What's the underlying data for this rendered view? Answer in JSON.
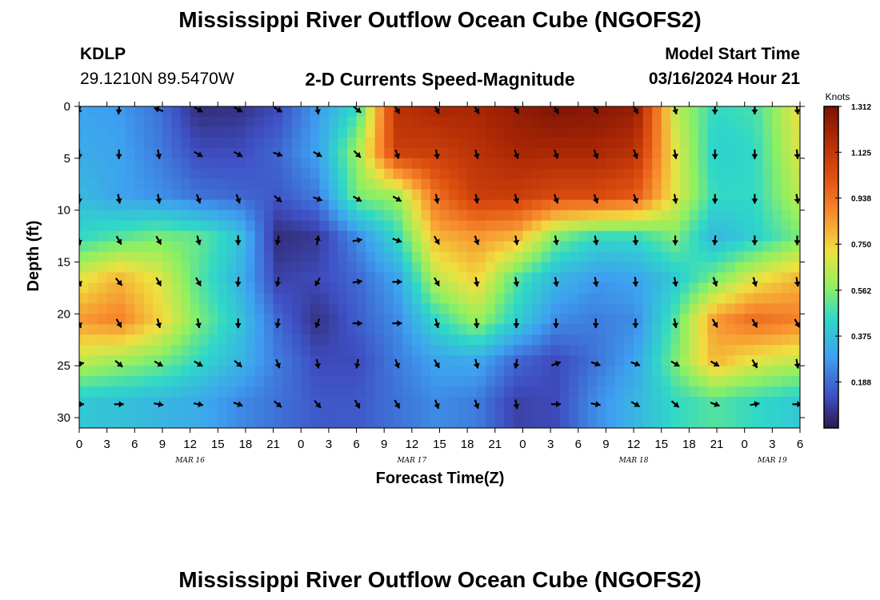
{
  "header": {
    "title": "Mississippi River Outflow Ocean Cube (NGOFS2)",
    "station_id": "KDLP",
    "station_coords": "29.1210N  89.5470W",
    "subtitle": "2-D Currents Speed-Magnitude",
    "model_start_label": "Model Start Time",
    "model_start_value": "03/16/2024 Hour 21"
  },
  "footer": {
    "title": "Mississippi River Outflow Ocean Cube (NGOFS2)"
  },
  "chart_data": {
    "type": "heatmap",
    "title": "2-D Currents Speed-Magnitude",
    "xlabel": "Forecast Time(Z)",
    "ylabel": "Depth (ft)",
    "x_range_hours": [
      0,
      78
    ],
    "ylim": [
      0,
      31
    ],
    "y_ticks": [
      0,
      5,
      10,
      15,
      20,
      25,
      30
    ],
    "x_ticks": [
      {
        "h": 0,
        "label": "0"
      },
      {
        "h": 3,
        "label": "3"
      },
      {
        "h": 6,
        "label": "6"
      },
      {
        "h": 9,
        "label": "9"
      },
      {
        "h": 12,
        "label": "12"
      },
      {
        "h": 15,
        "label": "15"
      },
      {
        "h": 18,
        "label": "18"
      },
      {
        "h": 21,
        "label": "21"
      },
      {
        "h": 24,
        "label": "0"
      },
      {
        "h": 27,
        "label": "3"
      },
      {
        "h": 30,
        "label": "6"
      },
      {
        "h": 33,
        "label": "9"
      },
      {
        "h": 36,
        "label": "12"
      },
      {
        "h": 39,
        "label": "15"
      },
      {
        "h": 42,
        "label": "18"
      },
      {
        "h": 45,
        "label": "21"
      },
      {
        "h": 48,
        "label": "0"
      },
      {
        "h": 51,
        "label": "3"
      },
      {
        "h": 54,
        "label": "6"
      },
      {
        "h": 57,
        "label": "9"
      },
      {
        "h": 60,
        "label": "12"
      },
      {
        "h": 63,
        "label": "15"
      },
      {
        "h": 66,
        "label": "18"
      },
      {
        "h": 69,
        "label": "21"
      },
      {
        "h": 72,
        "label": "0"
      },
      {
        "h": 75,
        "label": "3"
      },
      {
        "h": 78,
        "label": "6"
      }
    ],
    "date_labels": [
      {
        "h": 12,
        "label": "MAR 16"
      },
      {
        "h": 36,
        "label": "MAR 17"
      },
      {
        "h": 60,
        "label": "MAR 18"
      },
      {
        "h": 75,
        "label": "MAR 19"
      }
    ],
    "colorbar": {
      "unit": "Knots",
      "min": 0,
      "max": 1.312,
      "ticks": [
        1.312,
        1.125,
        0.938,
        0.75,
        0.562,
        0.375,
        0.188
      ]
    },
    "depths": [
      0,
      4.3,
      8.6,
      12.6,
      16.6,
      20.6,
      24.5,
      28.4
    ],
    "hours": [
      0,
      4.3,
      8.6,
      12.9,
      17.2,
      21.5,
      25.8,
      30.1,
      34.4,
      38.7,
      43,
      47.3,
      51.6,
      55.9,
      60.2,
      64.5,
      68.8,
      73.1,
      78
    ],
    "speed": [
      [
        0.3,
        0.28,
        0.2,
        0.05,
        0.06,
        0.12,
        0.28,
        0.45,
        1.15,
        1.2,
        1.2,
        1.25,
        1.3,
        1.28,
        1.25,
        0.65,
        0.45,
        0.48,
        0.72
      ],
      [
        0.32,
        0.3,
        0.22,
        0.12,
        0.12,
        0.18,
        0.3,
        0.6,
        1.1,
        1.1,
        1.15,
        1.2,
        1.2,
        1.2,
        1.15,
        0.7,
        0.42,
        0.45,
        0.7
      ],
      [
        0.36,
        0.3,
        0.26,
        0.2,
        0.18,
        0.15,
        0.22,
        0.55,
        0.6,
        0.95,
        1.1,
        1.1,
        1.05,
        1.05,
        1.0,
        0.7,
        0.45,
        0.45,
        0.65
      ],
      [
        0.45,
        0.5,
        0.55,
        0.52,
        0.4,
        0.05,
        0.08,
        0.25,
        0.45,
        0.8,
        0.85,
        0.8,
        0.55,
        0.45,
        0.45,
        0.55,
        0.35,
        0.42,
        0.55
      ],
      [
        0.7,
        0.8,
        0.7,
        0.5,
        0.35,
        0.1,
        0.12,
        0.18,
        0.3,
        0.65,
        0.75,
        0.5,
        0.35,
        0.28,
        0.3,
        0.4,
        0.55,
        0.7,
        0.8
      ],
      [
        0.85,
        0.9,
        0.75,
        0.55,
        0.4,
        0.18,
        0.06,
        0.16,
        0.25,
        0.45,
        0.6,
        0.42,
        0.25,
        0.22,
        0.25,
        0.5,
        0.85,
        0.95,
        0.9
      ],
      [
        0.65,
        0.6,
        0.55,
        0.45,
        0.35,
        0.22,
        0.12,
        0.12,
        0.22,
        0.3,
        0.32,
        0.18,
        0.12,
        0.2,
        0.3,
        0.55,
        0.8,
        0.7,
        0.65
      ],
      [
        0.4,
        0.38,
        0.35,
        0.32,
        0.25,
        0.2,
        0.15,
        0.15,
        0.2,
        0.25,
        0.22,
        0.1,
        0.12,
        0.25,
        0.35,
        0.45,
        0.5,
        0.45,
        0.4
      ]
    ],
    "vectors": {
      "hours": [
        0,
        4.3,
        8.6,
        12.9,
        17.2,
        21.5,
        25.8,
        30.1,
        34.4,
        38.7,
        43,
        47.3,
        51.6,
        55.9,
        60.2,
        64.5,
        68.8,
        73.1,
        77.7
      ],
      "depths": [
        0,
        4.3,
        8.6,
        12.6,
        16.6,
        20.6,
        24.5,
        28.4
      ],
      "angles_deg": [
        [
          110,
          95,
          200,
          30,
          30,
          30,
          80,
          40,
          60,
          60,
          60,
          60,
          60,
          60,
          60,
          75,
          90,
          90,
          80
        ],
        [
          90,
          90,
          80,
          30,
          30,
          20,
          30,
          45,
          70,
          80,
          75,
          70,
          70,
          70,
          70,
          80,
          90,
          90,
          85
        ],
        [
          90,
          80,
          80,
          70,
          70,
          40,
          20,
          30,
          30,
          80,
          80,
          75,
          70,
          70,
          70,
          80,
          90,
          90,
          80
        ],
        [
          80,
          60,
          60,
          75,
          90,
          100,
          -80,
          -10,
          20,
          60,
          70,
          80,
          80,
          80,
          85,
          90,
          95,
          90,
          90
        ],
        [
          70,
          50,
          60,
          60,
          95,
          100,
          120,
          -10,
          0,
          60,
          80,
          80,
          80,
          80,
          85,
          80,
          70,
          75,
          80
        ],
        [
          70,
          60,
          75,
          80,
          90,
          100,
          110,
          0,
          0,
          75,
          85,
          90,
          90,
          90,
          90,
          80,
          60,
          60,
          60
        ],
        [
          -10,
          40,
          30,
          30,
          40,
          70,
          80,
          100,
          70,
          60,
          75,
          100,
          -20,
          20,
          20,
          30,
          30,
          60,
          80
        ],
        [
          0,
          0,
          10,
          10,
          20,
          40,
          50,
          60,
          60,
          70,
          70,
          80,
          0,
          10,
          30,
          40,
          20,
          -10,
          0
        ]
      ]
    }
  }
}
